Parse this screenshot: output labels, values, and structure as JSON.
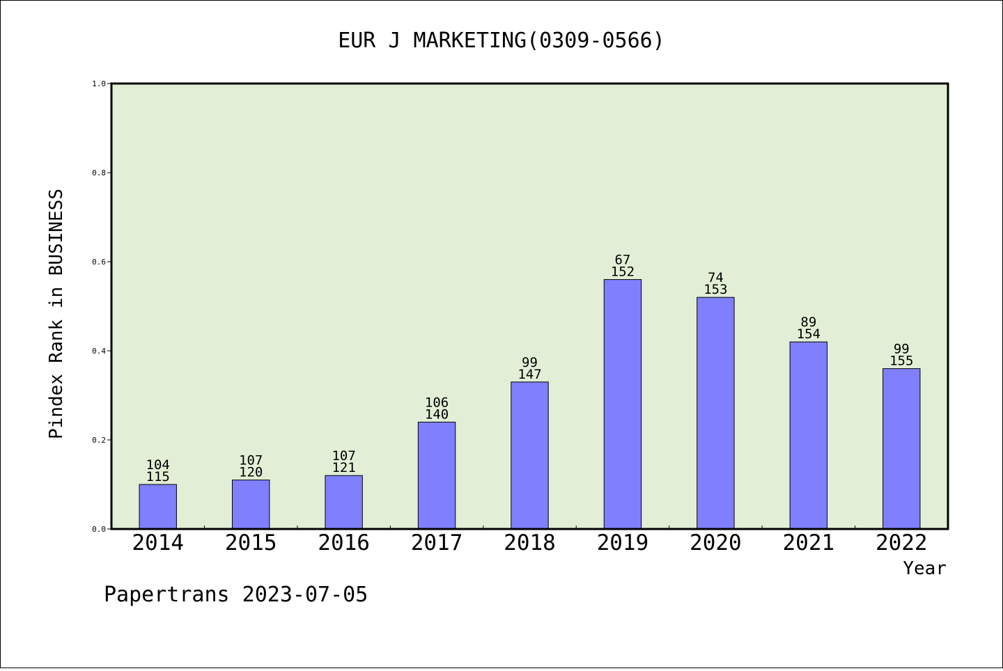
{
  "chart_data": {
    "type": "bar",
    "title": "EUR J MARKETING(0309-0566)",
    "xlabel": "Year",
    "ylabel": "Pindex Rank in BUSINESS",
    "categories": [
      "2014",
      "2015",
      "2016",
      "2017",
      "2018",
      "2019",
      "2020",
      "2021",
      "2022"
    ],
    "values": [
      0.1,
      0.11,
      0.12,
      0.24,
      0.33,
      0.56,
      0.52,
      0.42,
      0.36
    ],
    "bar_labels_top": [
      "104",
      "107",
      "107",
      "106",
      "99",
      "67",
      "74",
      "89",
      "99"
    ],
    "bar_labels_bottom": [
      "115",
      "120",
      "121",
      "140",
      "147",
      "152",
      "153",
      "154",
      "155"
    ],
    "ylim": [
      0.0,
      1.0
    ],
    "yticks": [
      "0.0",
      "0.2",
      "0.4",
      "0.6",
      "0.8",
      "1.0"
    ],
    "colors": {
      "bar": "#8080ff",
      "plot_background": "#e2efd6"
    },
    "grid": false,
    "legend": "none"
  },
  "footer": {
    "text": "Papertrans 2023-07-05"
  }
}
